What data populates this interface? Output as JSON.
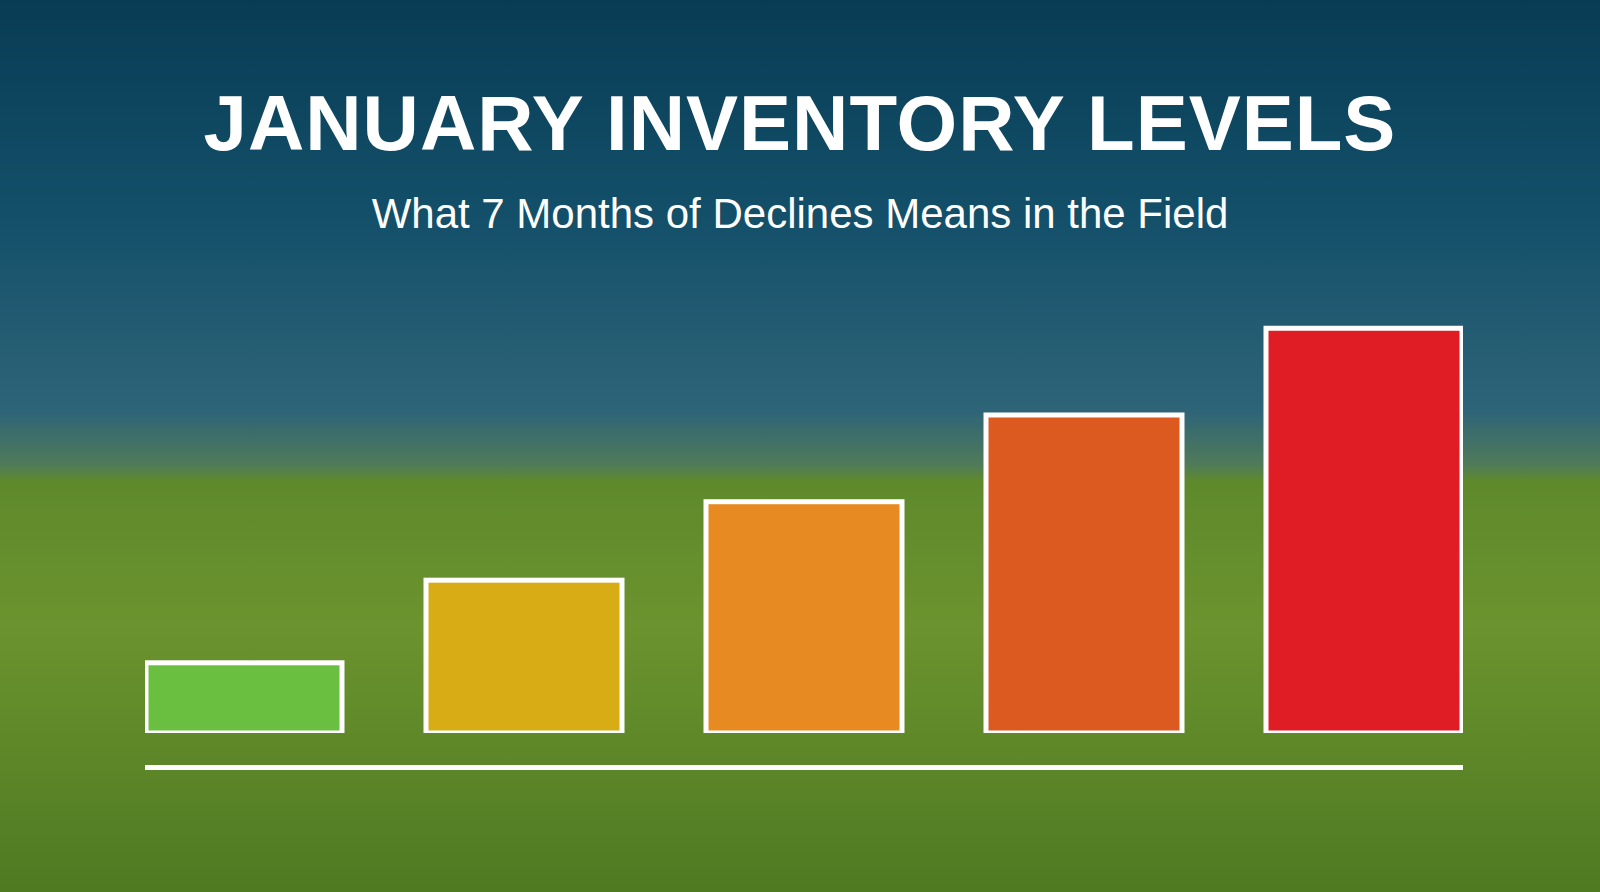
{
  "chart_data": {
    "type": "bar",
    "title": "JANUARY INVENTORY LEVELS",
    "subtitle": "What 7 Months of Declines Means in the Field",
    "categories": [
      null,
      null,
      null,
      null,
      null
    ],
    "values": [
      17,
      37,
      56,
      77,
      98
    ],
    "colors": [
      "#6abf40",
      "#d8ac14",
      "#e88a22",
      "#dc5a20",
      "#e01c24"
    ],
    "ylim": [
      0,
      100
    ],
    "tick_labels": false
  }
}
